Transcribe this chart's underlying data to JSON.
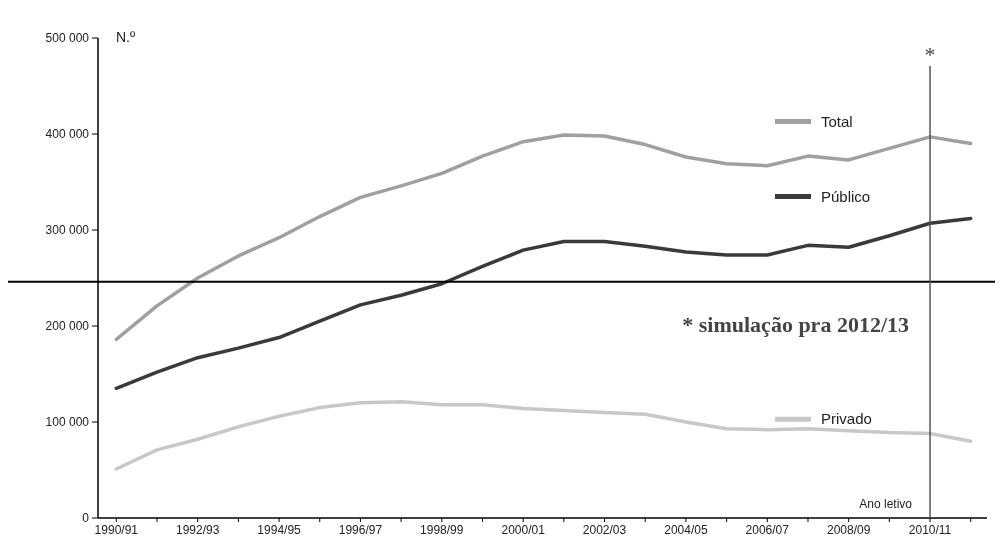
{
  "chart_data": {
    "type": "line",
    "ylabel": "N.º",
    "xlabel": "Ano letivo",
    "categories": [
      "1990/91",
      null,
      "1992/93",
      null,
      "1994/95",
      null,
      "1996/97",
      null,
      "1998/99",
      null,
      "2000/01",
      null,
      "2002/03",
      null,
      "2004/05",
      null,
      "2006/07",
      null,
      "2008/09",
      null,
      "2010/11",
      null
    ],
    "ylim": [
      0,
      500000
    ],
    "yticks": [
      {
        "value": 0,
        "label": "0"
      },
      {
        "value": 100000,
        "label": "100 000"
      },
      {
        "value": 200000,
        "label": "200 000"
      },
      {
        "value": 300000,
        "label": "300 000"
      },
      {
        "value": 400000,
        "label": "400 000"
      },
      {
        "value": 500000,
        "label": "500 000"
      }
    ],
    "series": [
      {
        "name": "Total",
        "color": "#a0a0a0",
        "values": [
          186000,
          221000,
          250000,
          273000,
          292000,
          314000,
          334000,
          346000,
          359000,
          377000,
          392000,
          399000,
          398000,
          389000,
          376000,
          369000,
          367000,
          377000,
          373000,
          385000,
          397000,
          390000
        ]
      },
      {
        "name": "Público",
        "color": "#3a3a3a",
        "values": [
          135000,
          152000,
          167000,
          177000,
          188000,
          205000,
          222000,
          232000,
          244000,
          262000,
          279000,
          288000,
          288000,
          283000,
          277000,
          274000,
          274000,
          284000,
          282000,
          294000,
          307000,
          312000
        ]
      },
      {
        "name": "Privado",
        "color": "#c8c8c8",
        "values": [
          51000,
          71000,
          82000,
          95000,
          106000,
          115000,
          120000,
          121000,
          118000,
          118000,
          114000,
          112000,
          110000,
          108000,
          100000,
          93000,
          92000,
          93000,
          91000,
          89000,
          88000,
          80000
        ]
      }
    ],
    "ref_lines": [
      {
        "axis": "y",
        "value": 246000,
        "color": "#000000"
      },
      {
        "axis": "x",
        "value": "2010/11",
        "label": "*",
        "color": "#555555"
      }
    ],
    "annotations": [
      "* simulação pra 2012/13"
    ],
    "legend": "right",
    "grid": false,
    "marker": "none",
    "line_style": "solid"
  }
}
